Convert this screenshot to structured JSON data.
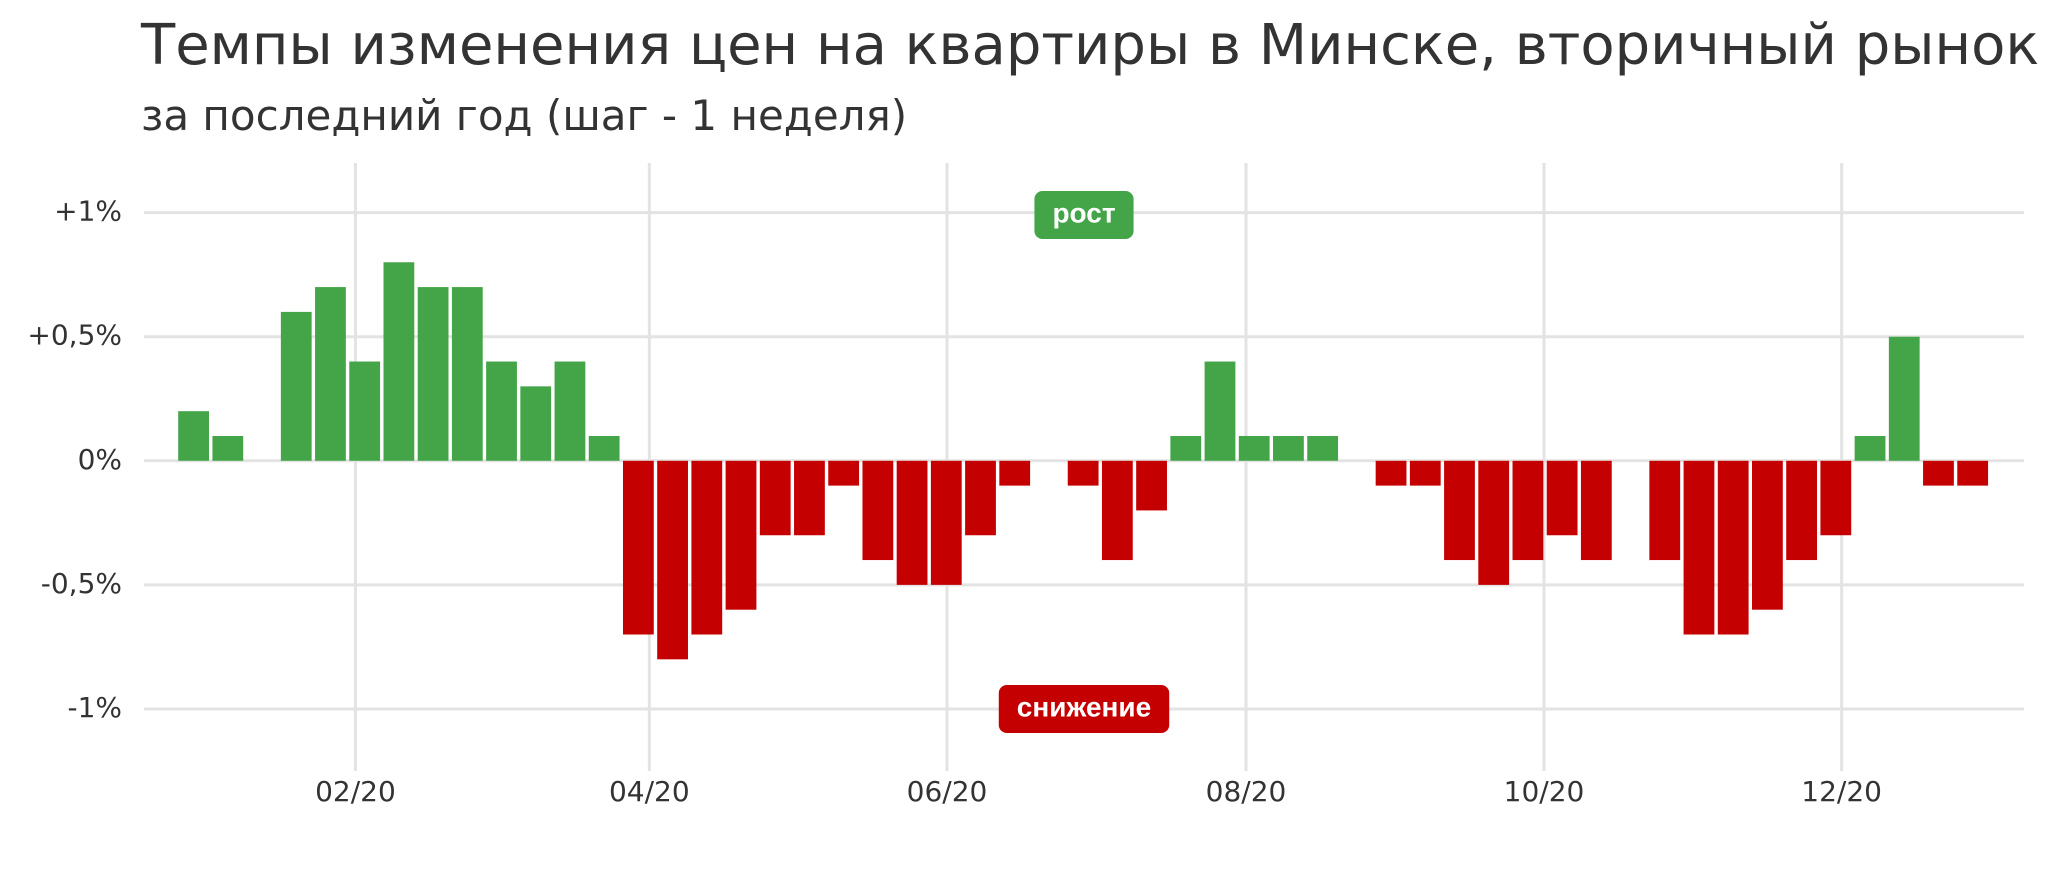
{
  "chart_data": {
    "type": "bar",
    "title": "Темпы изменения цен на квартиры в Минске, вторичный рынок",
    "subtitle": "за последний год (шаг - 1 неделя)",
    "categories": [
      null,
      null,
      null,
      null,
      null,
      null,
      null,
      null,
      null,
      null,
      null,
      null,
      null,
      null,
      null,
      null,
      null,
      null,
      null,
      null,
      null,
      null,
      null,
      null,
      null,
      null,
      null,
      null,
      null,
      null,
      null,
      null,
      null,
      null,
      null,
      null,
      null,
      null,
      null,
      null,
      null,
      null,
      null,
      null,
      null,
      null,
      null,
      null,
      null,
      null,
      null,
      null,
      null
    ],
    "values": [
      0.2,
      0.1,
      0,
      0.6,
      0.7,
      0.4,
      0.8,
      0.7,
      0.7,
      0.4,
      0.3,
      0.4,
      0.1,
      -0.7,
      -0.8,
      -0.7,
      -0.6,
      -0.3,
      -0.3,
      -0.1,
      -0.4,
      -0.5,
      -0.5,
      -0.3,
      -0.1,
      0,
      -0.1,
      -0.4,
      -0.2,
      0.1,
      0.4,
      0.1,
      0.1,
      0.1,
      0,
      -0.1,
      -0.1,
      -0.4,
      -0.5,
      -0.4,
      -0.3,
      -0.4,
      0,
      -0.4,
      -0.7,
      -0.7,
      -0.6,
      -0.4,
      -0.3,
      0.1,
      0.5,
      -0.1,
      -0.1
    ],
    "positive_color": "#43a548",
    "negative_color": "#c40000",
    "xlim": [
      -1.45,
      53.5
    ],
    "xticks": [
      {
        "value": 4.73,
        "label": "02/20"
      },
      {
        "value": 13.32,
        "label": "04/20"
      },
      {
        "value": 22.02,
        "label": "06/20"
      },
      {
        "value": 30.76,
        "label": "08/20"
      },
      {
        "value": 39.47,
        "label": "10/20"
      },
      {
        "value": 48.17,
        "label": "12/20"
      }
    ],
    "ylim": [
      -1.25,
      1.2
    ],
    "yticks": [
      {
        "value": 1,
        "label": "+1%"
      },
      {
        "value": 0.5,
        "label": "+0,5%"
      },
      {
        "value": 0,
        "label": "0%"
      },
      {
        "value": -0.5,
        "label": "-0,5%"
      },
      {
        "value": -1,
        "label": "-1%"
      }
    ],
    "annotations": [
      "рост",
      "снижение"
    ],
    "grid": true
  }
}
